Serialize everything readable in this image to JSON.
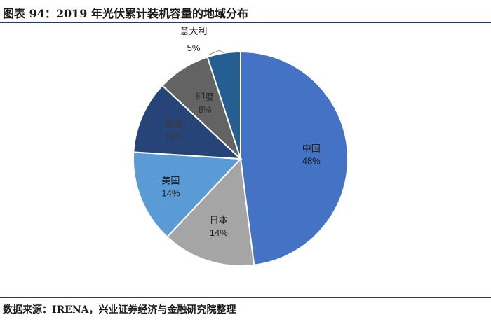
{
  "title": "图表 94：2019 年光伏累计装机容量的地域分布",
  "source": "数据来源：IRENA，兴业证券经济与金融研究院整理",
  "chart_data": {
    "type": "pie",
    "title": "",
    "slices": [
      {
        "label": "中国",
        "value": 48,
        "display": "48%",
        "color": "#4472C4",
        "text_color": "#1a1a1a"
      },
      {
        "label": "日本",
        "value": 14,
        "display": "14%",
        "color": "#A5A5A5",
        "text_color": "#1a1a1a"
      },
      {
        "label": "美国",
        "value": 14,
        "display": "14%",
        "color": "#5B9BD5",
        "text_color": "#1a1a1a"
      },
      {
        "label": "德国",
        "value": 11,
        "display": "11%",
        "color": "#264478",
        "text_color": "#3a3a3a"
      },
      {
        "label": "印度",
        "value": 8,
        "display": "8%",
        "color": "#636363",
        "text_color": "#2a2a2a"
      },
      {
        "label": "意大利",
        "value": 5,
        "display": "5%",
        "color": "#255E91",
        "text_color": "#1a1a1a"
      }
    ]
  }
}
